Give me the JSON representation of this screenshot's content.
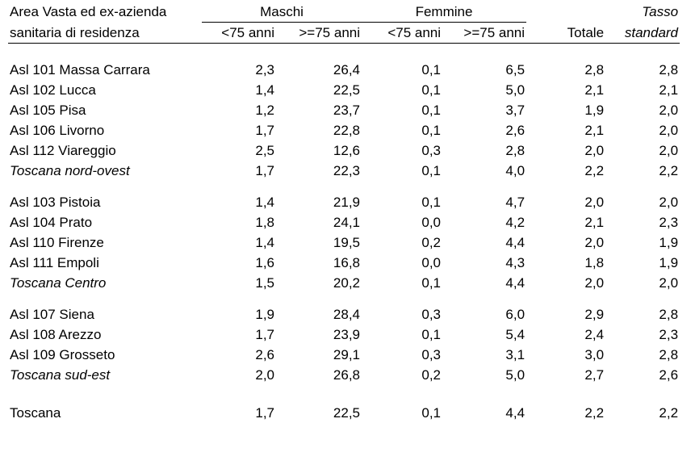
{
  "header": {
    "area_line1": "Area Vasta ed ex-azienda",
    "area_line2": "sanitaria di residenza",
    "maschi": "Maschi",
    "femmine": "Femmine",
    "sub_m_lt75": "<75 anni",
    "sub_m_ge75": ">=75 anni",
    "sub_f_lt75": "<75 anni",
    "sub_f_ge75": ">=75 anni",
    "totale": "Totale",
    "tasso_line1": "Tasso",
    "tasso_line2": "standard"
  },
  "groups": [
    {
      "rows": [
        {
          "name": "Asl 101 Massa Carrara",
          "m_lt75": "2,3",
          "m_ge75": "26,4",
          "f_lt75": "0,1",
          "f_ge75": "6,5",
          "totale": "2,8",
          "tasso": "2,8"
        },
        {
          "name": "Asl 102 Lucca",
          "m_lt75": "1,4",
          "m_ge75": "22,5",
          "f_lt75": "0,1",
          "f_ge75": "5,0",
          "totale": "2,1",
          "tasso": "2,1"
        },
        {
          "name": "Asl 105 Pisa",
          "m_lt75": "1,2",
          "m_ge75": "23,7",
          "f_lt75": "0,1",
          "f_ge75": "3,7",
          "totale": "1,9",
          "tasso": "2,0"
        },
        {
          "name": "Asl 106 Livorno",
          "m_lt75": "1,7",
          "m_ge75": "22,8",
          "f_lt75": "0,1",
          "f_ge75": "2,6",
          "totale": "2,1",
          "tasso": "2,0"
        },
        {
          "name": "Asl 112 Viareggio",
          "m_lt75": "2,5",
          "m_ge75": "12,6",
          "f_lt75": "0,3",
          "f_ge75": "2,8",
          "totale": "2,0",
          "tasso": "2,0"
        }
      ],
      "total": {
        "name": "Toscana nord-ovest",
        "m_lt75": "1,7",
        "m_ge75": "22,3",
        "f_lt75": "0,1",
        "f_ge75": "4,0",
        "totale": "2,2",
        "tasso": "2,2"
      }
    },
    {
      "rows": [
        {
          "name": "Asl 103 Pistoia",
          "m_lt75": "1,4",
          "m_ge75": "21,9",
          "f_lt75": "0,1",
          "f_ge75": "4,7",
          "totale": "2,0",
          "tasso": "2,0"
        },
        {
          "name": "Asl 104 Prato",
          "m_lt75": "1,8",
          "m_ge75": "24,1",
          "f_lt75": "0,0",
          "f_ge75": "4,2",
          "totale": "2,1",
          "tasso": "2,3"
        },
        {
          "name": "Asl 110 Firenze",
          "m_lt75": "1,4",
          "m_ge75": "19,5",
          "f_lt75": "0,2",
          "f_ge75": "4,4",
          "totale": "2,0",
          "tasso": "1,9"
        },
        {
          "name": "Asl 111 Empoli",
          "m_lt75": "1,6",
          "m_ge75": "16,8",
          "f_lt75": "0,0",
          "f_ge75": "4,3",
          "totale": "1,8",
          "tasso": "1,9"
        }
      ],
      "total": {
        "name": "Toscana Centro",
        "m_lt75": "1,5",
        "m_ge75": "20,2",
        "f_lt75": "0,1",
        "f_ge75": "4,4",
        "totale": "2,0",
        "tasso": "2,0"
      }
    },
    {
      "rows": [
        {
          "name": "Asl 107 Siena",
          "m_lt75": "1,9",
          "m_ge75": "28,4",
          "f_lt75": "0,3",
          "f_ge75": "6,0",
          "totale": "2,9",
          "tasso": "2,8"
        },
        {
          "name": "Asl 108 Arezzo",
          "m_lt75": "1,7",
          "m_ge75": "23,9",
          "f_lt75": "0,1",
          "f_ge75": "5,4",
          "totale": "2,4",
          "tasso": "2,3"
        },
        {
          "name": "Asl 109 Grosseto",
          "m_lt75": "2,6",
          "m_ge75": "29,1",
          "f_lt75": "0,3",
          "f_ge75": "3,1",
          "totale": "3,0",
          "tasso": "2,8"
        }
      ],
      "total": {
        "name": "Toscana sud-est",
        "m_lt75": "2,0",
        "m_ge75": "26,8",
        "f_lt75": "0,2",
        "f_ge75": "5,0",
        "totale": "2,7",
        "tasso": "2,6"
      }
    }
  ],
  "grand_total": {
    "name": "Toscana",
    "m_lt75": "1,7",
    "m_ge75": "22,5",
    "f_lt75": "0,1",
    "f_ge75": "4,4",
    "totale": "2,2",
    "tasso": "2,2"
  }
}
